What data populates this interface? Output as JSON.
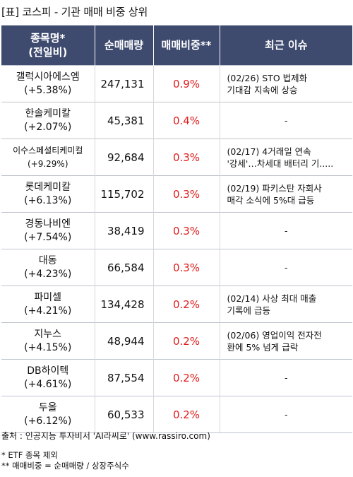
{
  "title": "[표] 코스피 - 기관 매매 비중 상위",
  "headers": {
    "name_line1": "종목명*",
    "name_line2": "(전일비)",
    "net_volume": "순매매량",
    "ratio": "매매비중**",
    "issue": "최근 이슈"
  },
  "rows": [
    {
      "name": "갤럭시아에스엠",
      "change": "(+5.38%)",
      "volume": "247,131",
      "ratio": "0.9%",
      "issue1": "(02/26) STO 법제화",
      "issue2": "기대감 지속에 상승"
    },
    {
      "name": "한솔케미칼",
      "change": "(+2.07%)",
      "volume": "45,381",
      "ratio": "0.4%",
      "issue1": "-",
      "issue2": ""
    },
    {
      "name": "이수스페셜티케미컬",
      "change": "(+9.29%)",
      "volume": "92,684",
      "ratio": "0.3%",
      "issue1": "(02/17) 4거래일 연속",
      "issue2": "'강세'…차세대 배터리 기....."
    },
    {
      "name": "롯데케미칼",
      "change": "(+6.13%)",
      "volume": "115,702",
      "ratio": "0.3%",
      "issue1": "(02/19) 파키스탄 자회사",
      "issue2": "매각 소식에 5%대 급등"
    },
    {
      "name": "경동나비엔",
      "change": "(+7.54%)",
      "volume": "38,419",
      "ratio": "0.3%",
      "issue1": "-",
      "issue2": ""
    },
    {
      "name": "대동",
      "change": "(+4.23%)",
      "volume": "66,584",
      "ratio": "0.3%",
      "issue1": "-",
      "issue2": ""
    },
    {
      "name": "파미셀",
      "change": "(+4.21%)",
      "volume": "134,428",
      "ratio": "0.2%",
      "issue1": "(02/14) 사상 최대 매출",
      "issue2": "기록에 급등"
    },
    {
      "name": "지누스",
      "change": "(+4.15%)",
      "volume": "48,944",
      "ratio": "0.2%",
      "issue1": "(02/06) 영업이익 전자전",
      "issue2": "환에 5% 넘게 급락"
    },
    {
      "name": "DB하이텍",
      "change": "(+4.61%)",
      "volume": "87,554",
      "ratio": "0.2%",
      "issue1": "-",
      "issue2": ""
    },
    {
      "name": "두올",
      "change": "(+6.12%)",
      "volume": "60,533",
      "ratio": "0.2%",
      "issue1": "-",
      "issue2": ""
    }
  ],
  "source": "출처 : 인공지능 투자비서 'AI라씨로' (www.rassiro.com)",
  "note1": "* ETF 종목 제외",
  "note2": "** 매매비중 = 순매매량 / 상장주식수",
  "colors": {
    "header_bg": "#3e4a6e",
    "ratio_red": "#e21b1b"
  }
}
